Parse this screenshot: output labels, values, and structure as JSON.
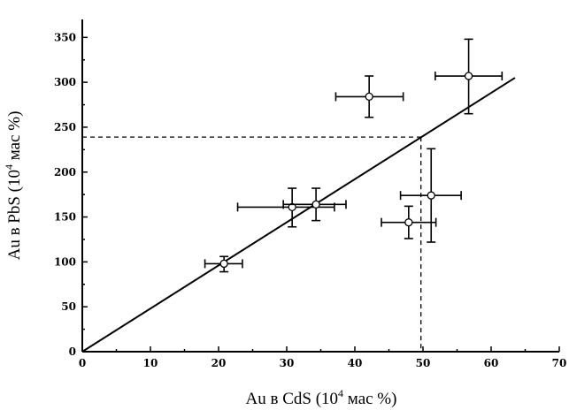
{
  "chart_data": {
    "type": "scatter",
    "title": "",
    "xlabel_parts": {
      "pre": "Au в CdS (10",
      "sup": "4",
      "post": " мас %)"
    },
    "ylabel_parts": {
      "pre": "Au в PbS (10",
      "sup": "4",
      "post": " мас %)"
    },
    "xlim": [
      0,
      70
    ],
    "ylim": [
      0,
      370
    ],
    "x_ticks": [
      0,
      10,
      20,
      30,
      40,
      50,
      60,
      70
    ],
    "y_ticks": [
      0,
      50,
      100,
      150,
      200,
      250,
      300,
      350
    ],
    "x_tick_labels": [
      "0",
      "10",
      "20",
      "30",
      "40",
      "50",
      "60",
      "70"
    ],
    "y_tick_labels": [
      "0",
      "50",
      "100",
      "150",
      "200",
      "250",
      "300",
      "350"
    ],
    "grid": false,
    "points": [
      {
        "x": 20.8,
        "y": 98,
        "xerr": [
          18.0,
          23.5
        ],
        "yerr": [
          89,
          106
        ]
      },
      {
        "x": 30.8,
        "y": 161,
        "xerr": [
          22.8,
          37.0
        ],
        "yerr": [
          139,
          182
        ]
      },
      {
        "x": 34.3,
        "y": 164,
        "xerr": [
          29.5,
          38.7
        ],
        "yerr": [
          146,
          182
        ]
      },
      {
        "x": 42.1,
        "y": 284,
        "xerr": [
          37.2,
          47.1
        ],
        "yerr": [
          261,
          307
        ]
      },
      {
        "x": 47.9,
        "y": 144,
        "xerr": [
          43.9,
          51.9
        ],
        "yerr": [
          126,
          162
        ]
      },
      {
        "x": 51.2,
        "y": 174,
        "xerr": [
          46.7,
          55.6
        ],
        "yerr": [
          122,
          226
        ]
      },
      {
        "x": 56.7,
        "y": 307,
        "xerr": [
          51.8,
          61.6
        ],
        "yerr": [
          265,
          348
        ]
      }
    ],
    "fit_line": {
      "x": [
        0,
        63.5
      ],
      "y": [
        0,
        305
      ]
    },
    "guide": {
      "x": 49.7,
      "y": 239
    }
  }
}
